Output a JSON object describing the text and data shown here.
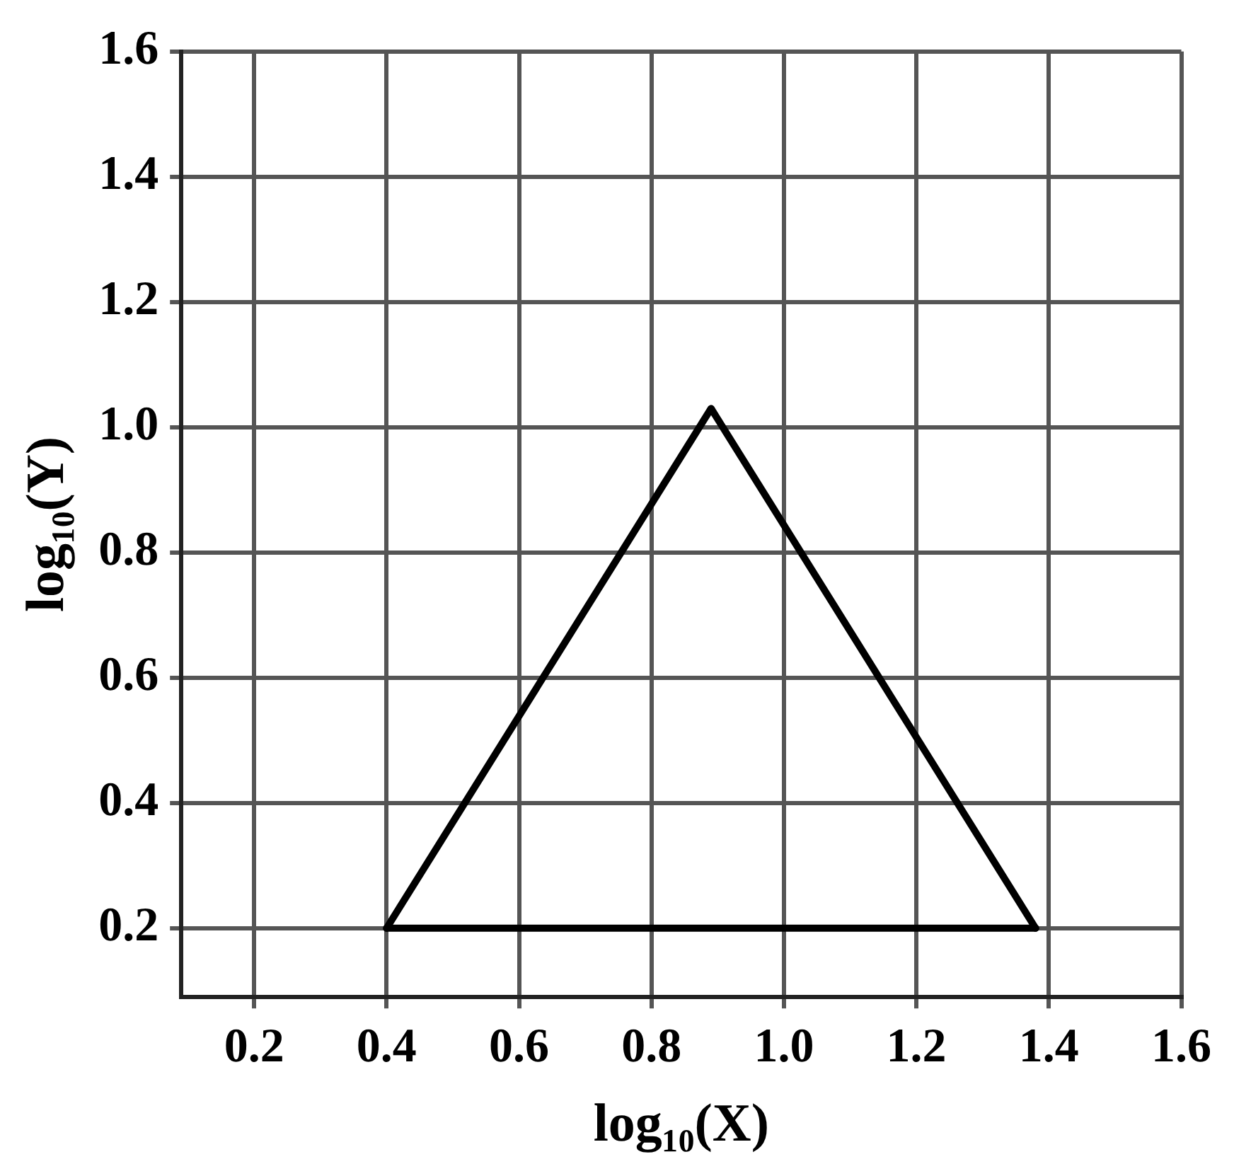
{
  "chart_data": {
    "type": "line",
    "xlabel": "log₁₀(X)",
    "ylabel": "log₁₀(Y)",
    "series": [
      {
        "color": "#000000",
        "x": [
          0.4,
          0.89,
          1.38
        ],
        "values": [
          0.2,
          1.03,
          0.2
        ]
      },
      {
        "color": "#000000",
        "x": [
          0.4,
          1.38
        ],
        "values": [
          0.2,
          0.2
        ]
      }
    ],
    "xlim": [
      0.09,
      1.6
    ],
    "ylim": [
      0.09,
      1.6
    ],
    "xticks": [
      0.2,
      0.4,
      0.6,
      0.8,
      {
        "value": 1,
        "label": "1.0"
      },
      1.2,
      1.4,
      1.6
    ],
    "yticks": [
      0.2,
      0.4,
      0.6,
      0.8,
      {
        "value": 1,
        "label": "1.0"
      },
      1.2,
      1.4,
      1.6
    ],
    "grid": true,
    "legend": false,
    "marker": "none",
    "line_style": "solid"
  }
}
